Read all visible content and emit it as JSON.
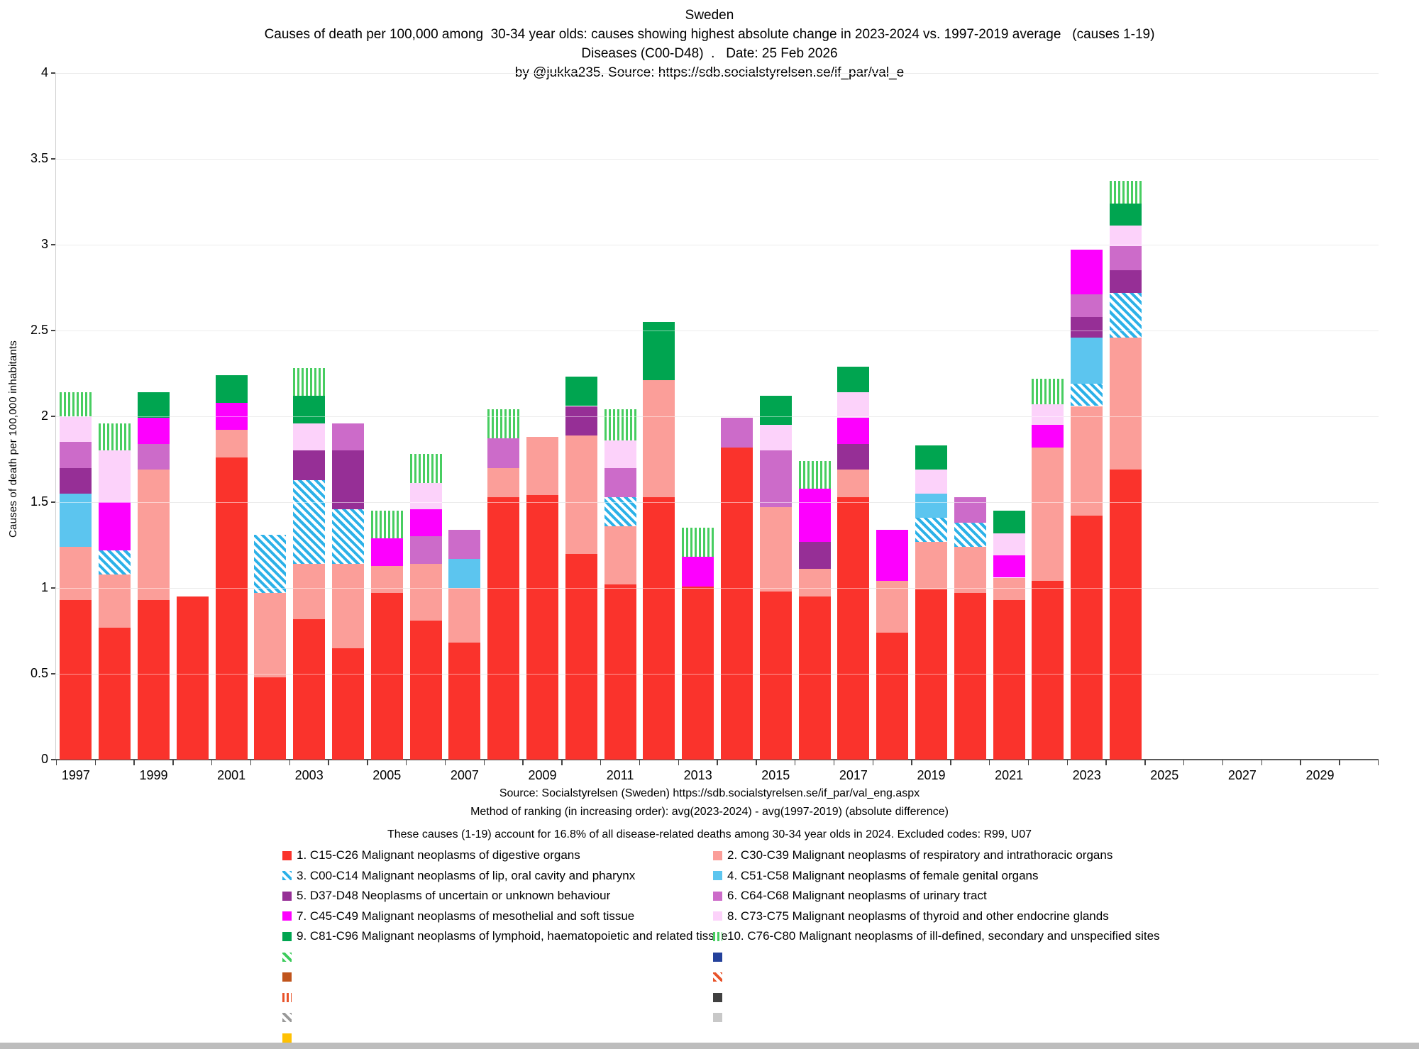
{
  "title": {
    "line1": "Sweden",
    "line2": "Causes of death per 100,000 among  30-34 year olds: causes showing highest absolute change in 2023-2024 vs. 1997-2019 average   (causes 1-19)",
    "line3": "Diseases (C00-D48)  .   Date: 25 Feb 2026",
    "line4": "by @jukka235. Source: https://sdb.socialstyrelsen.se/if_par/val_e"
  },
  "footer": {
    "line1": "Source: Socialstyrelsen (Sweden)  https://sdb.socialstyrelsen.se/if_par/val_eng.aspx",
    "line2": "Method of ranking (in increasing order): avg(2023-2024) - avg(1997-2019)   (absolute difference)",
    "line3": "These causes (1-19) account for 16.8% of all disease-related deaths among  30-34 year olds in 2024.     Excluded codes: R99, U07"
  },
  "y_axis": {
    "label": "Causes of death per 100,000 inhabitants",
    "tick_values": [
      0,
      0.5,
      1,
      1.5,
      2,
      2.5,
      3,
      3.5,
      4
    ],
    "tick_labels": [
      "0",
      "0.5",
      "1",
      "1.5",
      "2",
      "2.5",
      "3",
      "3.5",
      "4"
    ]
  },
  "x_axis": {
    "label_years": [
      1997,
      1999,
      2001,
      2003,
      2005,
      2007,
      2009,
      2011,
      2013,
      2015,
      2017,
      2019,
      2021,
      2023,
      2025,
      2027,
      2029
    ],
    "first_category": 1997,
    "num_categories": 34
  },
  "legend": [
    {
      "num": 1,
      "label": "1. C15-C26 Malignant neoplasms of digestive organs",
      "color": "#FA332C",
      "pattern": "solid"
    },
    {
      "num": 2,
      "label": "2. C30-C39 Malignant neoplasms of respiratory and intrathoracic organs",
      "color": "#FB9E99",
      "pattern": "solid"
    },
    {
      "num": 3,
      "label": "3. C00-C14 Malignant neoplasms of lip, oral cavity and pharynx",
      "color": "#2CB1E8",
      "pattern": "diag"
    },
    {
      "num": 4,
      "label": "4. C51-C58 Malignant neoplasms of female genital organs",
      "color": "#5CC5EF",
      "pattern": "solid"
    },
    {
      "num": 5,
      "label": "5. D37-D48 Neoplasms of uncertain or unknown behaviour",
      "color": "#962F96",
      "pattern": "solid"
    },
    {
      "num": 6,
      "label": "6. C64-C68 Malignant neoplasms of urinary tract",
      "color": "#CC6BC9",
      "pattern": "solid"
    },
    {
      "num": 7,
      "label": "7. C45-C49 Malignant neoplasms of mesothelial and soft tissue",
      "color": "#FD00FE",
      "pattern": "solid"
    },
    {
      "num": 8,
      "label": "8. C73-C75 Malignant neoplasms of thyroid and other endocrine glands",
      "color": "#FCD2FA",
      "pattern": "solid"
    },
    {
      "num": 9,
      "label": "9. C81-C96 Malignant neoplasms of lymphoid, haematopoietic and related tissue",
      "color": "#00A550",
      "pattern": "solid"
    },
    {
      "num": 10,
      "label": "10. C76-C80 Malignant neoplasms of ill-defined, secondary and unspecified sites",
      "color": "#47CD60",
      "pattern": "vert"
    },
    {
      "num": 11,
      "label": "",
      "color": "#3CCB5B",
      "pattern": "diag"
    },
    {
      "num": 12,
      "label": "",
      "color": "#24419B",
      "pattern": "solid"
    },
    {
      "num": 13,
      "label": "",
      "color": "#C0541C",
      "pattern": "solid"
    },
    {
      "num": 14,
      "label": "",
      "color": "#E8532A",
      "pattern": "diag"
    },
    {
      "num": 15,
      "label": "",
      "color": "#E8532A",
      "pattern": "vert"
    },
    {
      "num": 16,
      "label": "",
      "color": "#404040",
      "pattern": "solid"
    },
    {
      "num": 17,
      "label": "",
      "color": "#999999",
      "pattern": "diag"
    },
    {
      "num": 18,
      "label": "",
      "color": "#C8C8C8",
      "pattern": "solid"
    },
    {
      "num": 19,
      "label": "",
      "color": "#FFC103",
      "pattern": "solid"
    }
  ],
  "chart_data": {
    "type": "bar",
    "stacked": true,
    "title": "Sweden — Causes of death per 100,000 among 30-34 year olds (Diseases C00-D48), causes 1-19",
    "xlabel": "",
    "ylabel": "Causes of death per 100,000 inhabitants",
    "ylim": [
      0,
      4
    ],
    "grid": true,
    "legend_position": "bottom",
    "categories": [
      1997,
      1998,
      1999,
      2000,
      2001,
      2002,
      2003,
      2004,
      2005,
      2006,
      2007,
      2008,
      2009,
      2010,
      2011,
      2012,
      2013,
      2014,
      2015,
      2016,
      2017,
      2018,
      2019,
      2020,
      2021,
      2022,
      2023,
      2024
    ],
    "series": [
      {
        "name": "1. C15-C26 Malignant neoplasms of digestive organs",
        "values": [
          0.93,
          0.77,
          0.93,
          0.95,
          1.76,
          0.48,
          0.82,
          0.65,
          0.97,
          0.81,
          0.68,
          1.53,
          1.54,
          1.2,
          1.02,
          1.53,
          1.01,
          1.82,
          0.98,
          0.95,
          1.53,
          0.74,
          0.99,
          0.97,
          0.93,
          1.04,
          1.42,
          1.69
        ]
      },
      {
        "name": "2. C30-C39 Malignant neoplasms of respiratory and intrathoracic organs",
        "values": [
          0.31,
          0.31,
          0.76,
          0,
          0.16,
          0.49,
          0.32,
          0.49,
          0.16,
          0.33,
          0.32,
          0.17,
          0.34,
          0.69,
          0.34,
          0.68,
          0,
          0,
          0.49,
          0.16,
          0.16,
          0.3,
          0.28,
          0.27,
          0.13,
          0.78,
          0.64,
          0.77
        ]
      },
      {
        "name": "3. C00-C14 Malignant neoplasms of lip, oral cavity and pharynx",
        "values": [
          0,
          0.14,
          0,
          0,
          0,
          0.34,
          0.49,
          0.32,
          0,
          0,
          0,
          0,
          0,
          0,
          0.17,
          0,
          0,
          0,
          0,
          0,
          0,
          0,
          0.14,
          0.14,
          0,
          0,
          0.13,
          0.26
        ]
      },
      {
        "name": "4. C51-C58 Malignant neoplasms of female genital organs",
        "values": [
          0.31,
          0,
          0,
          0,
          0,
          0,
          0,
          0,
          0,
          0,
          0.17,
          0,
          0,
          0,
          0,
          0,
          0,
          0,
          0,
          0,
          0,
          0,
          0.14,
          0,
          0,
          0,
          0.27,
          0
        ]
      },
      {
        "name": "5. D37-D48 Neoplasms of uncertain or unknown behaviour",
        "values": [
          0.15,
          0,
          0,
          0,
          0,
          0,
          0.17,
          0.34,
          0,
          0,
          0,
          0,
          0,
          0.17,
          0,
          0,
          0,
          0,
          0,
          0.16,
          0.15,
          0,
          0,
          0,
          0,
          0,
          0.12,
          0.13
        ]
      },
      {
        "name": "6. C64-C68 Malignant neoplasms of urinary tract",
        "values": [
          0.15,
          0,
          0.15,
          0,
          0,
          0,
          0,
          0.16,
          0,
          0.16,
          0.17,
          0.17,
          0,
          0,
          0.17,
          0,
          0,
          0.17,
          0.33,
          0,
          0,
          0,
          0,
          0.15,
          0,
          0,
          0.13,
          0.14
        ]
      },
      {
        "name": "7. C45-C49 Malignant neoplasms of mesothelial and soft tissue",
        "values": [
          0,
          0.28,
          0.15,
          0,
          0.16,
          0,
          0,
          0,
          0.16,
          0.16,
          0,
          0,
          0,
          0,
          0,
          0,
          0.17,
          0,
          0,
          0.31,
          0.15,
          0.3,
          0,
          0,
          0.13,
          0.13,
          0.26,
          0
        ]
      },
      {
        "name": "8. C73-C75 Malignant neoplasms of thyroid and other endocrine glands",
        "values": [
          0.15,
          0.3,
          0,
          0,
          0,
          0,
          0.16,
          0,
          0,
          0.15,
          0,
          0,
          0,
          0,
          0.16,
          0,
          0,
          0,
          0.15,
          0,
          0.15,
          0,
          0.14,
          0,
          0.13,
          0.12,
          0,
          0.12
        ]
      },
      {
        "name": "9. C81-C96 Malignant neoplasms of lymphoid, haematopoietic and related tissue",
        "values": [
          0,
          0,
          0.15,
          0,
          0.16,
          0,
          0.16,
          0,
          0,
          0,
          0,
          0,
          0,
          0.17,
          0,
          0.34,
          0,
          0,
          0.17,
          0,
          0.15,
          0,
          0.14,
          0,
          0.13,
          0,
          0,
          0.13
        ]
      },
      {
        "name": "10. C76-C80 Malignant neoplasms of ill-defined, secondary and unspecified sites",
        "values": [
          0.14,
          0.16,
          0,
          0,
          0,
          0,
          0.16,
          0,
          0.16,
          0.17,
          0,
          0.17,
          0,
          0,
          0.18,
          0,
          0.17,
          0,
          0,
          0.16,
          0,
          0,
          0,
          0,
          0,
          0.15,
          0,
          0.13
        ]
      }
    ]
  }
}
